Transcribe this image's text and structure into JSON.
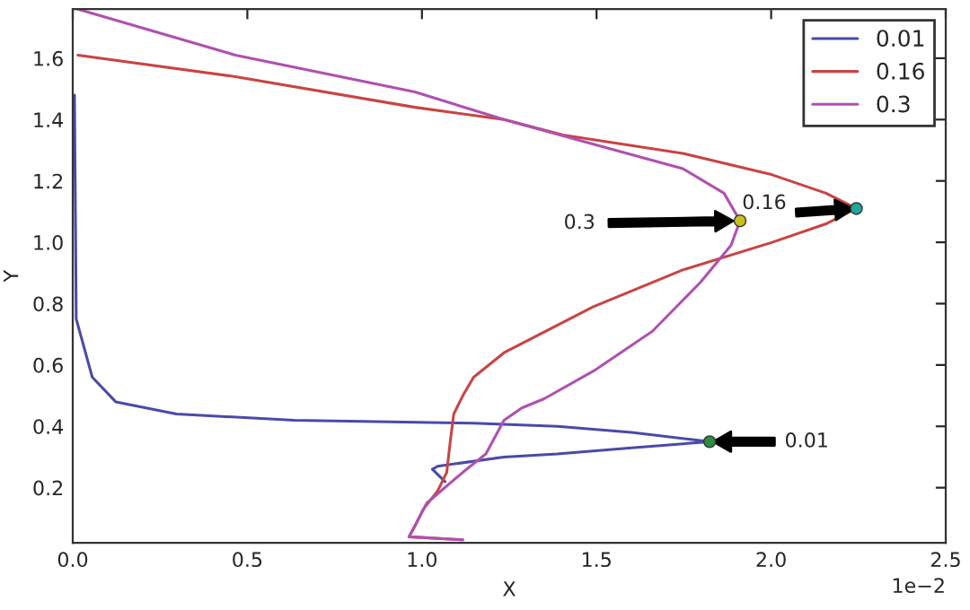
{
  "chart_data": {
    "type": "line",
    "xlabel": "X",
    "ylabel": "Y",
    "xlim": [
      0,
      2.5
    ],
    "xticks": [
      {
        "value": 0,
        "label": "0.0"
      },
      0.5,
      {
        "value": 1,
        "label": "1.0"
      },
      1.5,
      {
        "value": 2,
        "label": "2.0"
      },
      2.5
    ],
    "ylim": [
      0.02,
      1.76
    ],
    "yticks": [
      0.2,
      0.4,
      0.6,
      0.8,
      {
        "value": 1,
        "label": "1.0"
      },
      1.2,
      1.4,
      1.6
    ],
    "grid": false,
    "legend": "top right",
    "series": [
      {
        "name": "0.01",
        "color": "#4a4aa8",
        "x": [
          0.005,
          0.01,
          0.056,
          0.123,
          0.297,
          0.635,
          1.148,
          1.388,
          1.6,
          1.824,
          1.6,
          1.388,
          1.235,
          1.045,
          1.03,
          1.066
        ],
        "values": [
          1.48,
          0.75,
          0.56,
          0.48,
          0.44,
          0.42,
          0.41,
          0.4,
          0.38,
          0.35,
          0.33,
          0.31,
          0.3,
          0.27,
          0.26,
          0.22
        ]
      },
      {
        "name": "0.16",
        "color": "#c84444",
        "x": [
          0.015,
          0.466,
          0.98,
          1.235,
          1.404,
          1.747,
          2.003,
          2.157,
          2.244,
          2.157,
          2.003,
          1.747,
          1.491,
          1.235,
          1.148,
          1.117,
          1.091,
          1.081,
          1.071,
          1.045,
          1.004,
          0.978,
          0.963,
          1.117
        ],
        "values": [
          1.61,
          1.54,
          1.44,
          1.4,
          1.35,
          1.29,
          1.22,
          1.16,
          1.11,
          1.06,
          1.0,
          0.91,
          0.79,
          0.64,
          0.56,
          0.5,
          0.44,
          0.35,
          0.25,
          0.19,
          0.13,
          0.07,
          0.04,
          0.03
        ]
      },
      {
        "name": "0.3",
        "color": "#b050b0",
        "x": [
          0.015,
          0.466,
          0.98,
          1.235,
          1.491,
          1.747,
          1.865,
          1.911,
          1.885,
          1.798,
          1.66,
          1.491,
          1.35,
          1.286,
          1.235,
          1.183,
          1.117,
          1.014,
          0.963,
          1.117
        ],
        "values": [
          1.76,
          1.61,
          1.49,
          1.4,
          1.32,
          1.24,
          1.16,
          1.07,
          0.99,
          0.87,
          0.71,
          0.58,
          0.49,
          0.46,
          0.42,
          0.31,
          0.25,
          0.15,
          0.04,
          0.03
        ]
      },
      {
        "type": "scatter",
        "x": [
          1.824,
          2.244,
          1.911
        ],
        "values": [
          0.35,
          1.11,
          1.07
        ],
        "colors": [
          "#2e8b40",
          "#20a8a0",
          "#c8c020"
        ]
      }
    ],
    "annotations": [
      "0.01",
      "0.16",
      "0.3",
      "1e−2"
    ]
  }
}
